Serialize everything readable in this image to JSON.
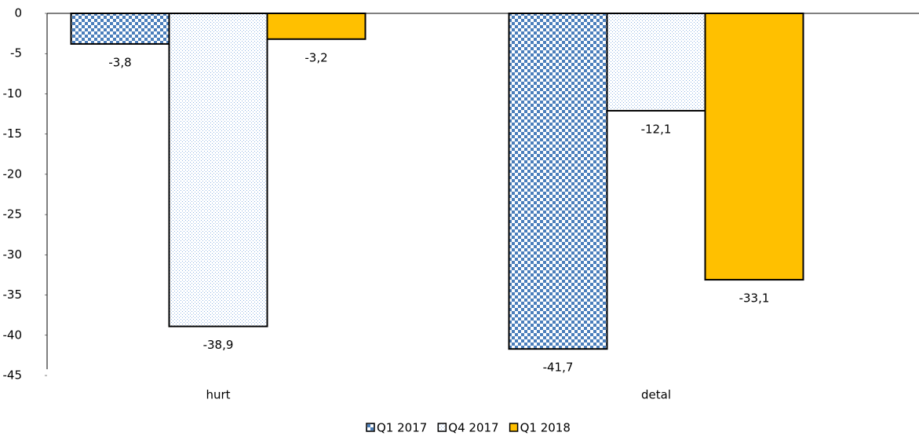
{
  "chart_data": {
    "type": "bar",
    "categories": [
      "hurt",
      "detal"
    ],
    "series": [
      {
        "name": "Q1 2017",
        "color": "#4a7ebb",
        "pattern": "checker",
        "values": [
          -3.8,
          -41.7
        ],
        "value_labels": [
          "-3,8",
          "-41,7"
        ]
      },
      {
        "name": "Q4 2017",
        "color": "#8fb4e3",
        "pattern": "dots",
        "values": [
          -38.9,
          -12.1
        ],
        "value_labels": [
          "-38,9",
          "-12,1"
        ]
      },
      {
        "name": "Q1 2018",
        "color": "#ffc000",
        "pattern": "solid",
        "values": [
          -3.2,
          -33.1
        ],
        "value_labels": [
          "-3,2",
          "-33,1"
        ]
      }
    ],
    "ylim": [
      -45,
      0
    ],
    "yticks": [
      0,
      -5,
      -10,
      -15,
      -20,
      -25,
      -30,
      -35,
      -40,
      -45
    ],
    "legend": "bottom"
  }
}
